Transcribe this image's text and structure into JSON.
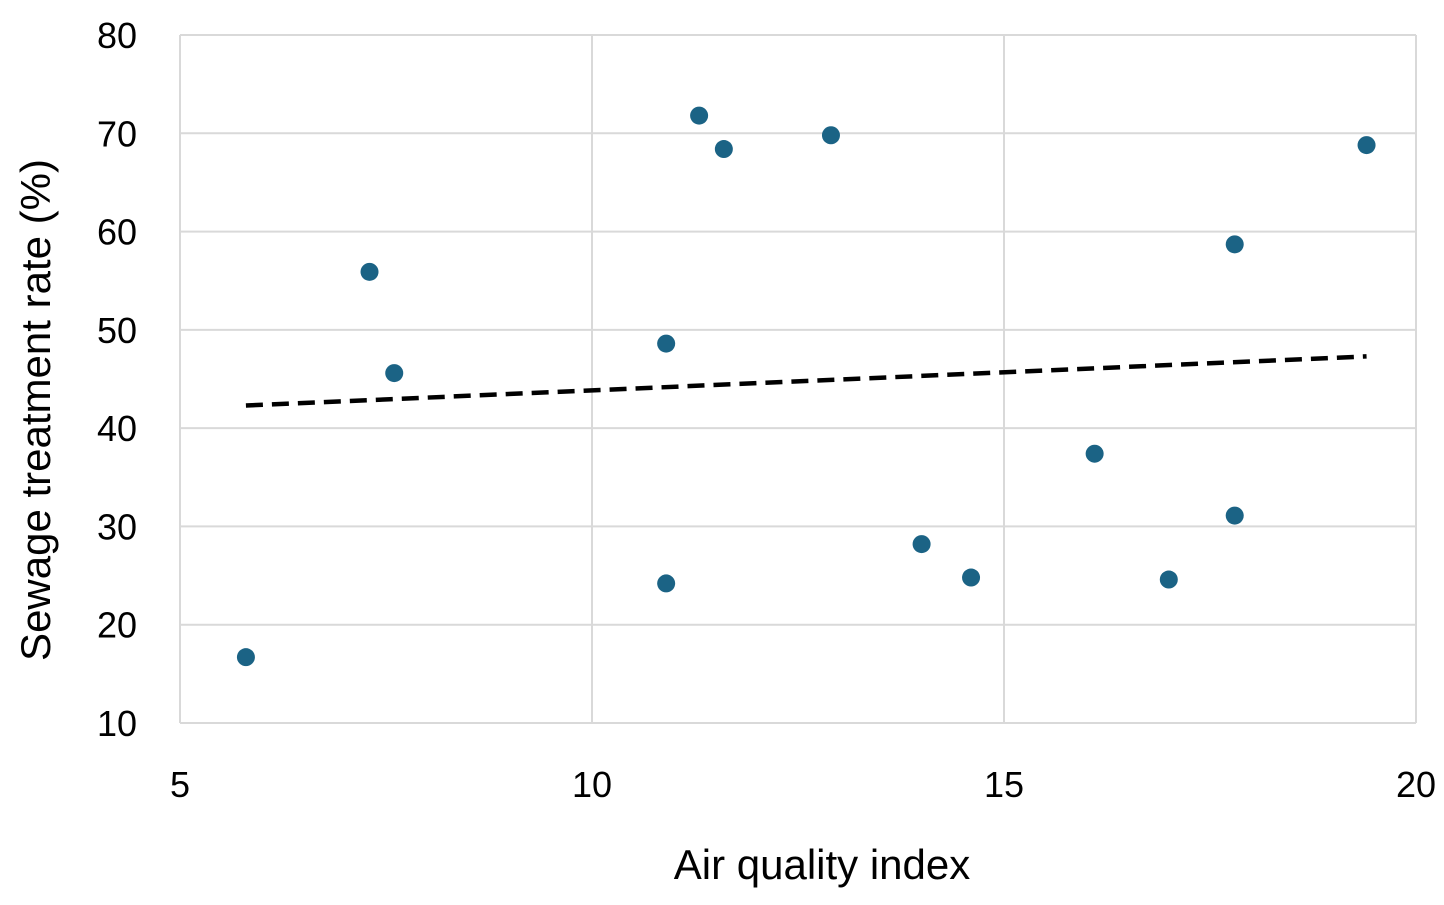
{
  "chart_data": {
    "type": "scatter",
    "title": "",
    "xlabel": "Air quality index",
    "ylabel": "Sewage treatment rate (%)",
    "xlim": [
      5,
      20
    ],
    "ylim": [
      10,
      80
    ],
    "x_ticks": [
      5,
      10,
      15,
      20
    ],
    "y_ticks": [
      10,
      20,
      30,
      40,
      50,
      60,
      70,
      80
    ],
    "grid": true,
    "legend": "none",
    "series": [
      {
        "color": "#1b6385",
        "points": [
          {
            "x": 5.8,
            "y": 16.7
          },
          {
            "x": 7.3,
            "y": 55.9
          },
          {
            "x": 7.6,
            "y": 45.6
          },
          {
            "x": 10.9,
            "y": 48.6
          },
          {
            "x": 10.9,
            "y": 24.2
          },
          {
            "x": 11.3,
            "y": 71.8
          },
          {
            "x": 11.6,
            "y": 68.4
          },
          {
            "x": 12.9,
            "y": 69.8
          },
          {
            "x": 14.0,
            "y": 28.2
          },
          {
            "x": 14.6,
            "y": 24.8
          },
          {
            "x": 16.1,
            "y": 37.4
          },
          {
            "x": 17.0,
            "y": 24.6
          },
          {
            "x": 17.8,
            "y": 58.7
          },
          {
            "x": 17.8,
            "y": 31.1
          },
          {
            "x": 19.4,
            "y": 68.8
          }
        ]
      }
    ],
    "trendline": {
      "style": "dashed",
      "color": "#000000",
      "x": [
        5.8,
        19.4
      ],
      "y": [
        42.3,
        47.3
      ]
    }
  }
}
